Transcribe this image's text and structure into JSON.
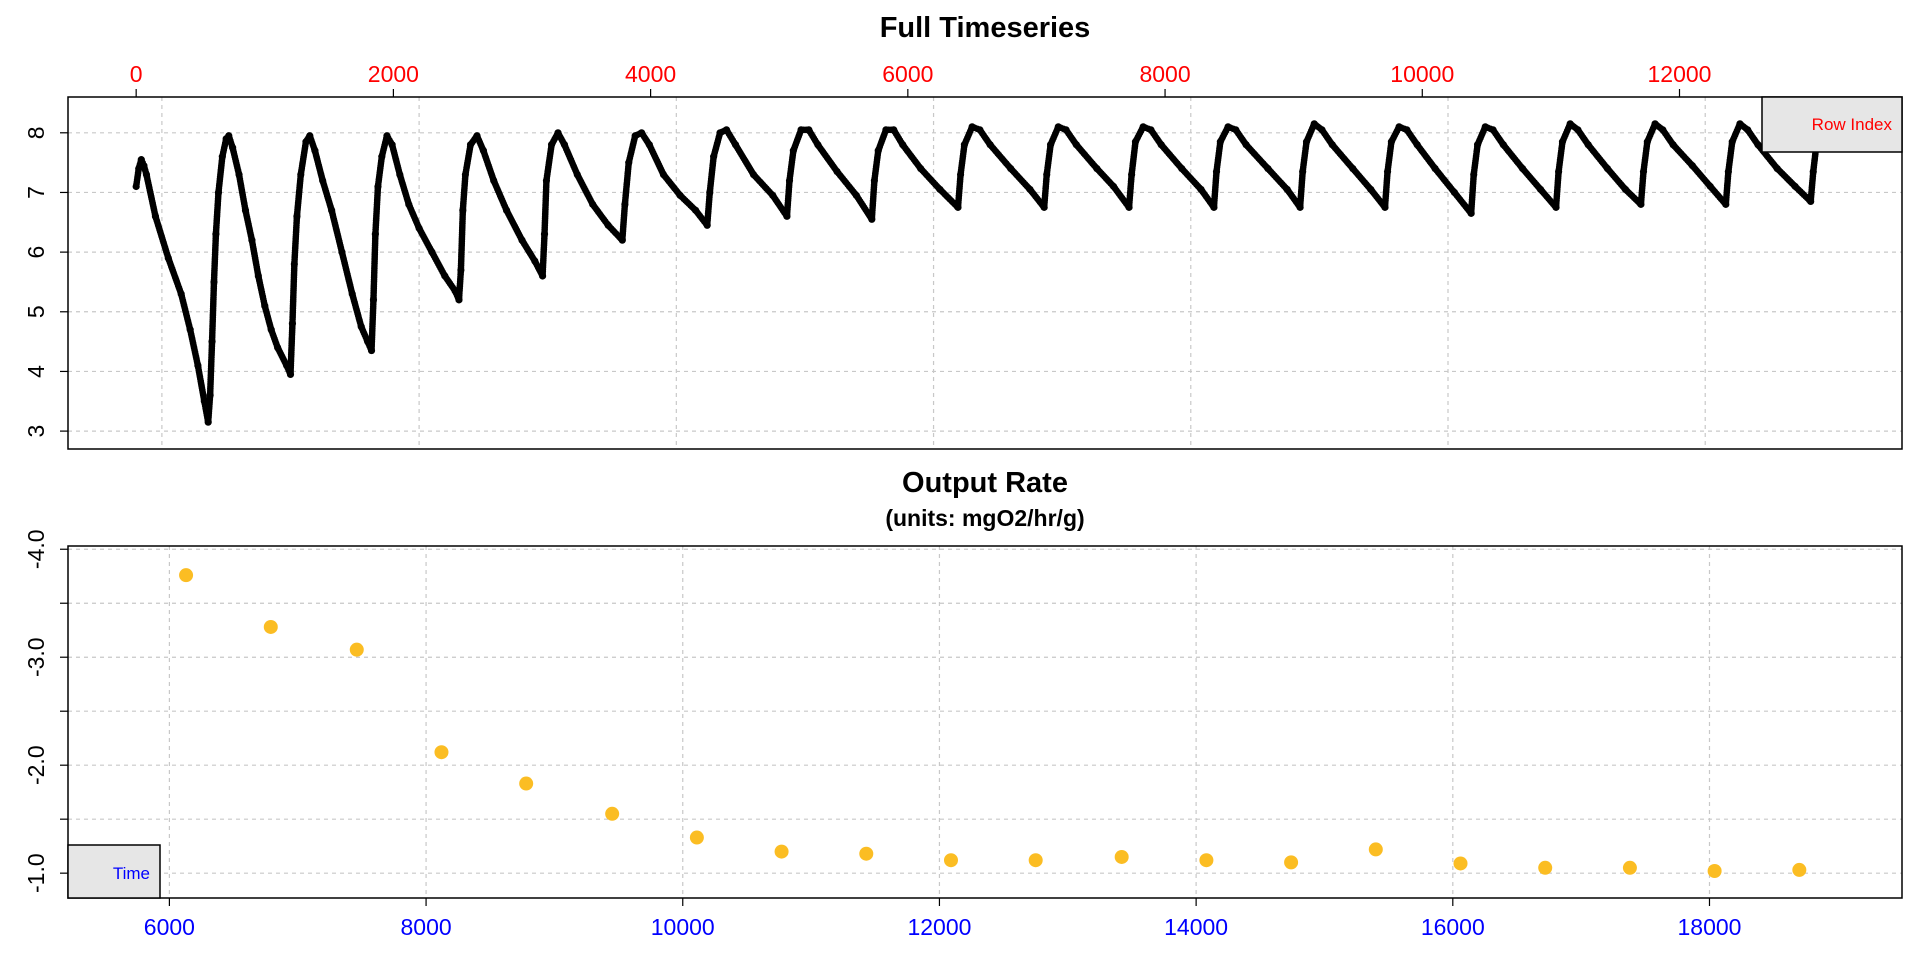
{
  "colors": {
    "series1": "#000000",
    "series2": "#fbbd23",
    "top_axis": "#ff0000",
    "bottom_axis": "#0000ff",
    "grid": "#c8c8c8",
    "legend_box": "#e6e6e6"
  },
  "chart_data": [
    {
      "type": "scatter",
      "title": "Full Timeseries",
      "subtitle": "",
      "legend": {
        "label": "Row Index",
        "placement": "top-right"
      },
      "x_axis_label": "Row Index",
      "x_axis_position": "top",
      "xlim": [
        -530,
        13730
      ],
      "ylim": [
        2.7,
        8.6
      ],
      "x_ticks": [
        0,
        2000,
        4000,
        6000,
        8000,
        10000,
        12000
      ],
      "x_tick_labels": [
        "0",
        "2000",
        "4000",
        "6000",
        "8000",
        "10000",
        "12000"
      ],
      "y_ticks": [
        3,
        4,
        5,
        6,
        7,
        8
      ],
      "y_tick_labels": [
        "3",
        "4",
        "5",
        "6",
        "7",
        "8"
      ],
      "grid": true,
      "series": [
        {
          "points": [
            [
              0,
              7.1
            ],
            [
              20,
              7.4
            ],
            [
              40,
              7.55
            ],
            [
              60,
              7.45
            ],
            [
              80,
              7.3
            ],
            [
              150,
              6.6
            ],
            [
              250,
              5.9
            ],
            [
              350,
              5.3
            ],
            [
              420,
              4.7
            ],
            [
              480,
              4.1
            ],
            [
              530,
              3.5
            ],
            [
              560,
              3.15
            ],
            [
              575,
              3.6
            ],
            [
              590,
              4.5
            ],
            [
              605,
              5.5
            ],
            [
              620,
              6.3
            ],
            [
              640,
              7.0
            ],
            [
              670,
              7.6
            ],
            [
              700,
              7.9
            ],
            [
              720,
              7.95
            ],
            [
              750,
              7.75
            ],
            [
              800,
              7.3
            ],
            [
              850,
              6.7
            ],
            [
              900,
              6.2
            ],
            [
              950,
              5.6
            ],
            [
              1000,
              5.1
            ],
            [
              1050,
              4.7
            ],
            [
              1100,
              4.4
            ],
            [
              1170,
              4.1
            ],
            [
              1200,
              3.95
            ],
            [
              1215,
              4.8
            ],
            [
              1230,
              5.8
            ],
            [
              1250,
              6.6
            ],
            [
              1280,
              7.3
            ],
            [
              1320,
              7.85
            ],
            [
              1350,
              7.95
            ],
            [
              1390,
              7.7
            ],
            [
              1450,
              7.2
            ],
            [
              1520,
              6.7
            ],
            [
              1600,
              6.0
            ],
            [
              1680,
              5.3
            ],
            [
              1750,
              4.75
            ],
            [
              1800,
              4.5
            ],
            [
              1830,
              4.35
            ],
            [
              1845,
              5.2
            ],
            [
              1860,
              6.3
            ],
            [
              1880,
              7.1
            ],
            [
              1910,
              7.6
            ],
            [
              1950,
              7.95
            ],
            [
              1990,
              7.8
            ],
            [
              2050,
              7.3
            ],
            [
              2120,
              6.8
            ],
            [
              2200,
              6.4
            ],
            [
              2300,
              6.0
            ],
            [
              2400,
              5.6
            ],
            [
              2480,
              5.35
            ],
            [
              2510,
              5.2
            ],
            [
              2525,
              5.7
            ],
            [
              2540,
              6.7
            ],
            [
              2560,
              7.3
            ],
            [
              2600,
              7.8
            ],
            [
              2650,
              7.95
            ],
            [
              2700,
              7.7
            ],
            [
              2780,
              7.2
            ],
            [
              2880,
              6.7
            ],
            [
              3000,
              6.2
            ],
            [
              3100,
              5.85
            ],
            [
              3160,
              5.6
            ],
            [
              3175,
              6.3
            ],
            [
              3190,
              7.2
            ],
            [
              3230,
              7.8
            ],
            [
              3280,
              8.0
            ],
            [
              3330,
              7.8
            ],
            [
              3430,
              7.3
            ],
            [
              3550,
              6.8
            ],
            [
              3670,
              6.45
            ],
            [
              3780,
              6.2
            ],
            [
              3800,
              6.8
            ],
            [
              3830,
              7.5
            ],
            [
              3880,
              7.95
            ],
            [
              3930,
              8.0
            ],
            [
              3990,
              7.8
            ],
            [
              4100,
              7.3
            ],
            [
              4230,
              6.95
            ],
            [
              4350,
              6.7
            ],
            [
              4440,
              6.45
            ],
            [
              4460,
              7.0
            ],
            [
              4490,
              7.6
            ],
            [
              4540,
              8.0
            ],
            [
              4590,
              8.05
            ],
            [
              4660,
              7.8
            ],
            [
              4800,
              7.3
            ],
            [
              4950,
              6.95
            ],
            [
              5060,
              6.6
            ],
            [
              5080,
              7.2
            ],
            [
              5110,
              7.7
            ],
            [
              5170,
              8.05
            ],
            [
              5230,
              8.05
            ],
            [
              5300,
              7.8
            ],
            [
              5450,
              7.35
            ],
            [
              5600,
              6.95
            ],
            [
              5720,
              6.55
            ],
            [
              5740,
              7.2
            ],
            [
              5770,
              7.7
            ],
            [
              5830,
              8.05
            ],
            [
              5890,
              8.05
            ],
            [
              5960,
              7.8
            ],
            [
              6100,
              7.4
            ],
            [
              6250,
              7.05
            ],
            [
              6390,
              6.75
            ],
            [
              6410,
              7.3
            ],
            [
              6440,
              7.8
            ],
            [
              6500,
              8.1
            ],
            [
              6560,
              8.05
            ],
            [
              6640,
              7.8
            ],
            [
              6800,
              7.4
            ],
            [
              6950,
              7.05
            ],
            [
              7060,
              6.75
            ],
            [
              7080,
              7.3
            ],
            [
              7110,
              7.8
            ],
            [
              7170,
              8.1
            ],
            [
              7230,
              8.05
            ],
            [
              7310,
              7.8
            ],
            [
              7470,
              7.4
            ],
            [
              7600,
              7.1
            ],
            [
              7720,
              6.75
            ],
            [
              7740,
              7.3
            ],
            [
              7770,
              7.85
            ],
            [
              7830,
              8.1
            ],
            [
              7890,
              8.05
            ],
            [
              7970,
              7.8
            ],
            [
              8130,
              7.4
            ],
            [
              8280,
              7.05
            ],
            [
              8380,
              6.75
            ],
            [
              8400,
              7.35
            ],
            [
              8430,
              7.85
            ],
            [
              8490,
              8.1
            ],
            [
              8550,
              8.05
            ],
            [
              8630,
              7.8
            ],
            [
              8800,
              7.4
            ],
            [
              8950,
              7.05
            ],
            [
              9050,
              6.75
            ],
            [
              9070,
              7.35
            ],
            [
              9100,
              7.85
            ],
            [
              9160,
              8.15
            ],
            [
              9220,
              8.05
            ],
            [
              9300,
              7.8
            ],
            [
              9460,
              7.4
            ],
            [
              9600,
              7.05
            ],
            [
              9710,
              6.75
            ],
            [
              9730,
              7.35
            ],
            [
              9760,
              7.85
            ],
            [
              9820,
              8.1
            ],
            [
              9880,
              8.05
            ],
            [
              9960,
              7.8
            ],
            [
              10100,
              7.4
            ],
            [
              10250,
              7.0
            ],
            [
              10380,
              6.65
            ],
            [
              10400,
              7.3
            ],
            [
              10430,
              7.8
            ],
            [
              10490,
              8.1
            ],
            [
              10550,
              8.05
            ],
            [
              10630,
              7.8
            ],
            [
              10780,
              7.4
            ],
            [
              10920,
              7.05
            ],
            [
              11040,
              6.75
            ],
            [
              11060,
              7.35
            ],
            [
              11090,
              7.85
            ],
            [
              11150,
              8.15
            ],
            [
              11210,
              8.05
            ],
            [
              11290,
              7.8
            ],
            [
              11440,
              7.4
            ],
            [
              11580,
              7.05
            ],
            [
              11700,
              6.8
            ],
            [
              11720,
              7.35
            ],
            [
              11750,
              7.85
            ],
            [
              11810,
              8.15
            ],
            [
              11870,
              8.05
            ],
            [
              11950,
              7.8
            ],
            [
              12100,
              7.45
            ],
            [
              12240,
              7.1
            ],
            [
              12360,
              6.8
            ],
            [
              12380,
              7.35
            ],
            [
              12410,
              7.85
            ],
            [
              12470,
              8.15
            ],
            [
              12530,
              8.05
            ],
            [
              12610,
              7.8
            ],
            [
              12760,
              7.4
            ],
            [
              12900,
              7.1
            ],
            [
              13020,
              6.85
            ],
            [
              13040,
              7.35
            ],
            [
              13070,
              7.9
            ]
          ]
        }
      ]
    },
    {
      "type": "scatter",
      "title": "Output Rate",
      "subtitle": "(units: mgO2/hr/g)",
      "legend": {
        "label": "Time",
        "placement": "bottom-left"
      },
      "x_axis_label": "Time",
      "x_axis_position": "bottom",
      "xlim": [
        5210,
        19500
      ],
      "ylim": [
        -0.77,
        -4.03
      ],
      "y_reversed": true,
      "x_ticks": [
        6000,
        8000,
        10000,
        12000,
        14000,
        16000,
        18000
      ],
      "x_tick_labels": [
        "6000",
        "8000",
        "10000",
        "12000",
        "14000",
        "16000",
        "18000"
      ],
      "y_ticks": [
        -1.0,
        -2.0,
        -3.0,
        -4.0
      ],
      "y_tick_labels": [
        "-1.0",
        "-2.0",
        "-3.0",
        "-4.0"
      ],
      "y_minor_ticks": [
        -1.5,
        -2.5,
        -3.5
      ],
      "grid": true,
      "series": [
        {
          "x": [
            6130,
            6790,
            7460,
            8120,
            8780,
            9450,
            10110,
            10770,
            11430,
            12090,
            12750,
            13420,
            14080,
            14740,
            15400,
            16060,
            16720,
            17380,
            18040,
            18700
          ],
          "y": [
            -3.76,
            -3.28,
            -3.07,
            -2.12,
            -1.83,
            -1.55,
            -1.33,
            -1.2,
            -1.18,
            -1.12,
            -1.12,
            -1.15,
            -1.12,
            -1.1,
            -1.22,
            -1.09,
            -1.05,
            -1.05,
            -1.02,
            -1.03
          ]
        }
      ]
    }
  ]
}
